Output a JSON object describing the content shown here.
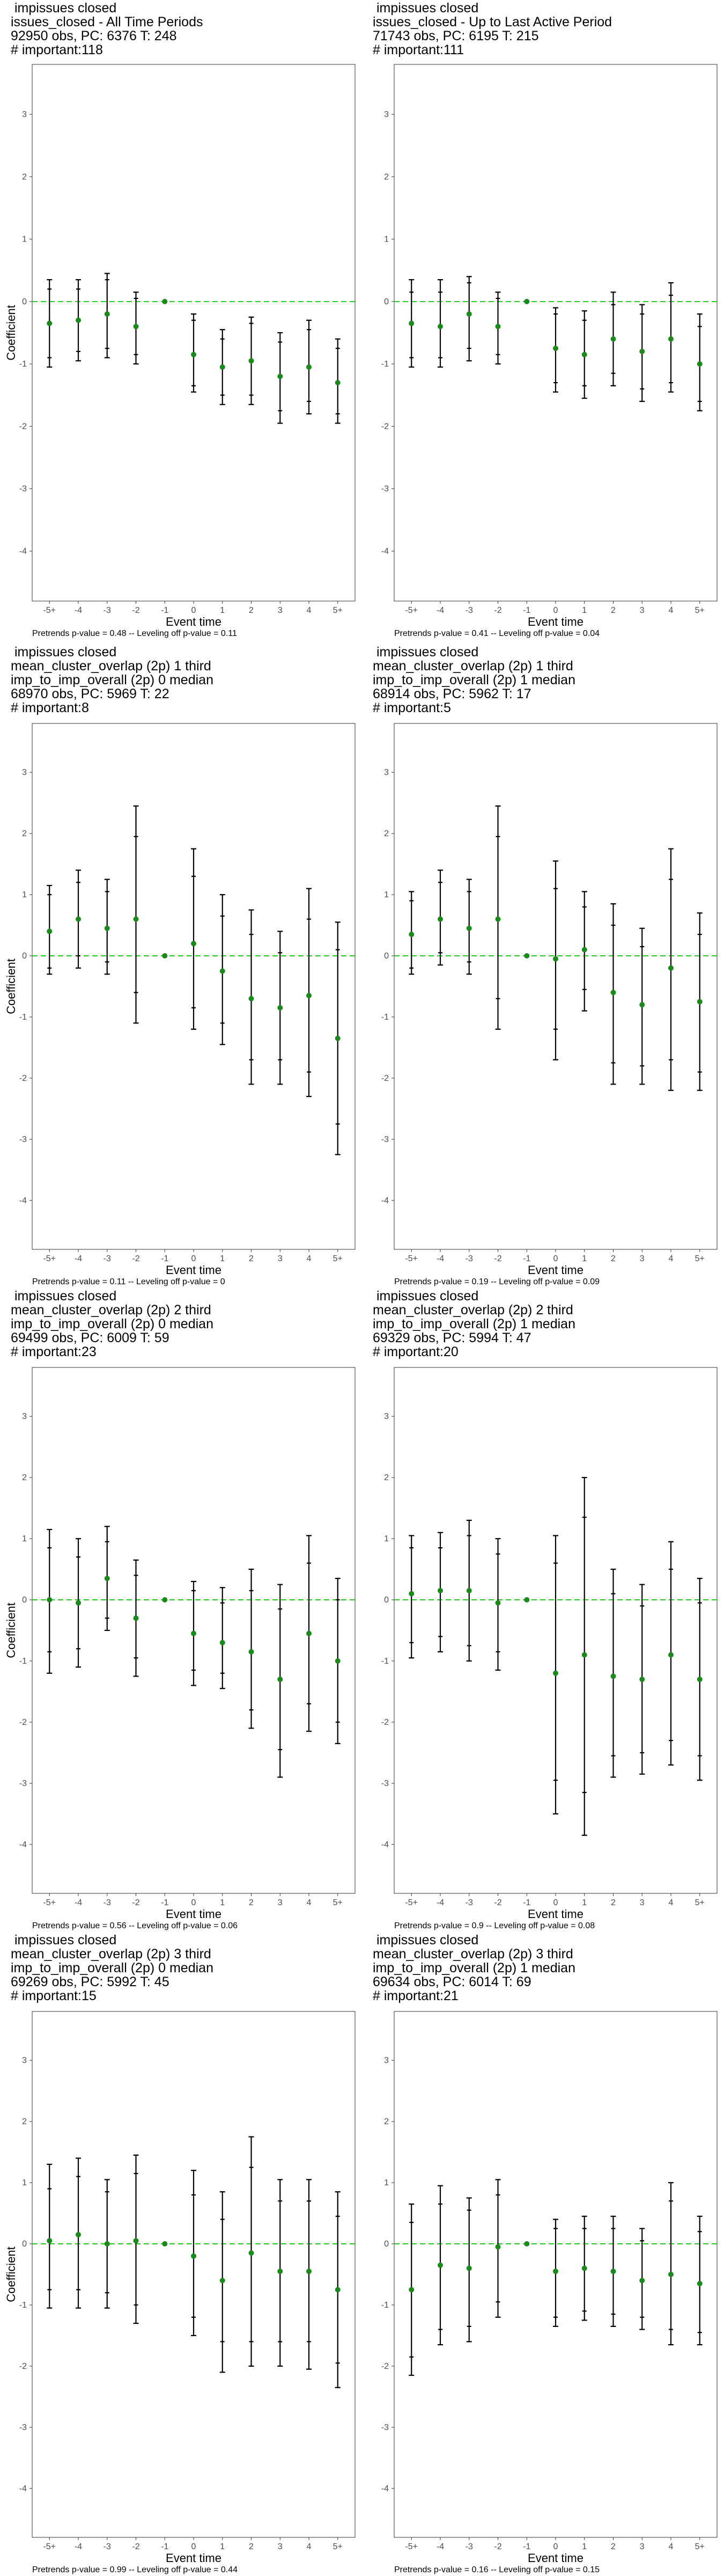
{
  "chart_data": [
    {
      "type": "scatter",
      "title_lines": [
        " impissues closed",
        "issues_closed - All Time Periods",
        "92950 obs, PC: 6376 T: 248",
        "# important:118"
      ],
      "xlabel": "Event time",
      "ylabel": "Coefficient",
      "categories": [
        "-5+",
        "-4",
        "-3",
        "-2",
        "-1",
        "0",
        "1",
        "2",
        "3",
        "4",
        "5+"
      ],
      "ylim": [
        -4.8,
        3.8
      ],
      "yticks": [
        -4,
        -3,
        -2,
        -1,
        0,
        1,
        2,
        3
      ],
      "reference_line": 0,
      "footer": "Pretrends p-value = 0.48 -- Leveling off p-value = 0.11",
      "series": [
        {
          "estimate": [
            -0.35,
            -0.3,
            -0.2,
            -0.4,
            0,
            -0.85,
            -1.05,
            -0.95,
            -1.2,
            -1.05,
            -1.3
          ],
          "ci90": [
            [
              -0.9,
              0.2
            ],
            [
              -0.8,
              0.2
            ],
            [
              -0.75,
              0.35
            ],
            [
              -0.85,
              0.05
            ],
            null,
            [
              -1.35,
              -0.3
            ],
            [
              -1.5,
              -0.6
            ],
            [
              -1.5,
              -0.35
            ],
            [
              -1.75,
              -0.65
            ],
            [
              -1.6,
              -0.45
            ],
            [
              -1.8,
              -0.75
            ]
          ],
          "ci95": [
            [
              -1.05,
              0.35
            ],
            [
              -0.95,
              0.35
            ],
            [
              -0.9,
              0.45
            ],
            [
              -1.0,
              0.15
            ],
            null,
            [
              -1.45,
              -0.2
            ],
            [
              -1.65,
              -0.45
            ],
            [
              -1.65,
              -0.25
            ],
            [
              -1.95,
              -0.5
            ],
            [
              -1.8,
              -0.3
            ],
            [
              -1.95,
              -0.6
            ]
          ]
        }
      ]
    },
    {
      "type": "scatter",
      "title_lines": [
        " impissues closed",
        "issues_closed - Up to Last Active Period",
        "71743 obs, PC: 6195 T: 215",
        "# important:111"
      ],
      "xlabel": "Event time",
      "ylabel": "",
      "categories": [
        "-5+",
        "-4",
        "-3",
        "-2",
        "-1",
        "0",
        "1",
        "2",
        "3",
        "4",
        "5+"
      ],
      "ylim": [
        -4.8,
        3.8
      ],
      "yticks": [
        -4,
        -3,
        -2,
        -1,
        0,
        1,
        2,
        3
      ],
      "reference_line": 0,
      "footer": "Pretrends p-value = 0.41 -- Leveling off p-value = 0.04",
      "series": [
        {
          "estimate": [
            -0.35,
            -0.4,
            -0.2,
            -0.4,
            0,
            -0.75,
            -0.85,
            -0.6,
            -0.8,
            -0.6,
            -1.0
          ],
          "ci90": [
            [
              -0.9,
              0.15
            ],
            [
              -0.9,
              0.15
            ],
            [
              -0.75,
              0.3
            ],
            [
              -0.85,
              0.05
            ],
            null,
            [
              -1.3,
              -0.2
            ],
            [
              -1.35,
              -0.3
            ],
            [
              -1.15,
              -0.05
            ],
            [
              -1.4,
              -0.2
            ],
            [
              -1.3,
              0.1
            ],
            [
              -1.6,
              -0.4
            ]
          ],
          "ci95": [
            [
              -1.05,
              0.35
            ],
            [
              -1.05,
              0.35
            ],
            [
              -0.95,
              0.4
            ],
            [
              -1.0,
              0.15
            ],
            null,
            [
              -1.45,
              -0.1
            ],
            [
              -1.55,
              -0.15
            ],
            [
              -1.35,
              0.15
            ],
            [
              -1.6,
              -0.05
            ],
            [
              -1.45,
              0.3
            ],
            [
              -1.75,
              -0.2
            ]
          ]
        }
      ]
    },
    {
      "type": "scatter",
      "title_lines": [
        " impissues closed",
        "mean_cluster_overlap (2p) 1 third",
        "imp_to_imp_overall (2p) 0 median",
        "68970 obs, PC: 5969 T: 22",
        "# important:8"
      ],
      "xlabel": "Event time",
      "ylabel": "Coefficient",
      "categories": [
        "-5+",
        "-4",
        "-3",
        "-2",
        "-1",
        "0",
        "1",
        "2",
        "3",
        "4",
        "5+"
      ],
      "ylim": [
        -4.8,
        3.8
      ],
      "yticks": [
        -4,
        -3,
        -2,
        -1,
        0,
        1,
        2,
        3
      ],
      "reference_line": 0,
      "footer": "Pretrends p-value = 0.11 -- Leveling off p-value = 0",
      "series": [
        {
          "estimate": [
            0.4,
            0.6,
            0.45,
            0.6,
            0,
            0.2,
            -0.25,
            -0.7,
            -0.85,
            -0.65,
            -1.35
          ],
          "ci90": [
            [
              -0.2,
              1.0
            ],
            [
              0.0,
              1.2
            ],
            [
              -0.1,
              1.05
            ],
            [
              -0.6,
              1.95
            ],
            null,
            [
              -0.85,
              1.3
            ],
            [
              -1.1,
              0.65
            ],
            [
              -1.7,
              0.35
            ],
            [
              -1.7,
              0.05
            ],
            [
              -1.9,
              0.6
            ],
            [
              -2.75,
              0.1
            ]
          ],
          "ci95": [
            [
              -0.3,
              1.15
            ],
            [
              -0.2,
              1.4
            ],
            [
              -0.3,
              1.25
            ],
            [
              -1.1,
              2.45
            ],
            null,
            [
              -1.2,
              1.75
            ],
            [
              -1.45,
              1.0
            ],
            [
              -2.1,
              0.75
            ],
            [
              -2.1,
              0.4
            ],
            [
              -2.3,
              1.1
            ],
            [
              -3.25,
              0.55
            ]
          ]
        }
      ]
    },
    {
      "type": "scatter",
      "title_lines": [
        " impissues closed",
        "mean_cluster_overlap (2p) 1 third",
        "imp_to_imp_overall (2p) 1 median",
        "68914 obs, PC: 5962 T: 17",
        "# important:5"
      ],
      "xlabel": "Event time",
      "ylabel": "",
      "categories": [
        "-5+",
        "-4",
        "-3",
        "-2",
        "-1",
        "0",
        "1",
        "2",
        "3",
        "4",
        "5+"
      ],
      "ylim": [
        -4.8,
        3.8
      ],
      "yticks": [
        -4,
        -3,
        -2,
        -1,
        0,
        1,
        2,
        3
      ],
      "reference_line": 0,
      "footer": "Pretrends p-value = 0.19 -- Leveling off p-value = 0.09",
      "series": [
        {
          "estimate": [
            0.35,
            0.6,
            0.45,
            0.6,
            0,
            -0.05,
            0.1,
            -0.6,
            -0.8,
            -0.2,
            -0.75
          ],
          "ci90": [
            [
              -0.2,
              0.9
            ],
            [
              0.05,
              1.2
            ],
            [
              -0.1,
              1.05
            ],
            [
              -0.7,
              1.95
            ],
            null,
            [
              -1.2,
              1.1
            ],
            [
              -0.55,
              0.8
            ],
            [
              -1.75,
              0.5
            ],
            [
              -1.8,
              0.15
            ],
            [
              -1.7,
              1.25
            ],
            [
              -1.9,
              0.35
            ]
          ],
          "ci95": [
            [
              -0.3,
              1.05
            ],
            [
              -0.15,
              1.4
            ],
            [
              -0.3,
              1.25
            ],
            [
              -1.2,
              2.45
            ],
            null,
            [
              -1.7,
              1.55
            ],
            [
              -0.9,
              1.05
            ],
            [
              -2.1,
              0.85
            ],
            [
              -2.1,
              0.45
            ],
            [
              -2.2,
              1.75
            ],
            [
              -2.2,
              0.7
            ]
          ]
        }
      ]
    },
    {
      "type": "scatter",
      "title_lines": [
        " impissues closed",
        "mean_cluster_overlap (2p) 2 third",
        "imp_to_imp_overall (2p) 0 median",
        "69499 obs, PC: 6009 T: 59",
        "# important:23"
      ],
      "xlabel": "Event time",
      "ylabel": "Coefficient",
      "categories": [
        "-5+",
        "-4",
        "-3",
        "-2",
        "-1",
        "0",
        "1",
        "2",
        "3",
        "4",
        "5+"
      ],
      "ylim": [
        -4.8,
        3.8
      ],
      "yticks": [
        -4,
        -3,
        -2,
        -1,
        0,
        1,
        2,
        3
      ],
      "reference_line": 0,
      "footer": "Pretrends p-value = 0.56 -- Leveling off p-value = 0.06",
      "series": [
        {
          "estimate": [
            0.0,
            -0.05,
            0.35,
            -0.3,
            0,
            -0.55,
            -0.7,
            -0.85,
            -1.3,
            -0.55,
            -1.0
          ],
          "ci90": [
            [
              -0.85,
              0.85
            ],
            [
              -0.8,
              0.7
            ],
            [
              -0.3,
              0.95
            ],
            [
              -0.95,
              0.4
            ],
            null,
            [
              -1.15,
              0.15
            ],
            [
              -1.2,
              -0.05
            ],
            [
              -1.8,
              0.15
            ],
            [
              -2.45,
              -0.15
            ],
            [
              -1.7,
              0.6
            ],
            [
              -2.0,
              0.0
            ]
          ],
          "ci95": [
            [
              -1.2,
              1.15
            ],
            [
              -1.1,
              1.0
            ],
            [
              -0.5,
              1.2
            ],
            [
              -1.25,
              0.65
            ],
            null,
            [
              -1.4,
              0.3
            ],
            [
              -1.45,
              0.2
            ],
            [
              -2.1,
              0.5
            ],
            [
              -2.9,
              0.25
            ],
            [
              -2.15,
              1.05
            ],
            [
              -2.35,
              0.35
            ]
          ]
        }
      ]
    },
    {
      "type": "scatter",
      "title_lines": [
        " impissues closed",
        "mean_cluster_overlap (2p) 2 third",
        "imp_to_imp_overall (2p) 1 median",
        "69329 obs, PC: 5994 T: 47",
        "# important:20"
      ],
      "xlabel": "Event time",
      "ylabel": "",
      "categories": [
        "-5+",
        "-4",
        "-3",
        "-2",
        "-1",
        "0",
        "1",
        "2",
        "3",
        "4",
        "5+"
      ],
      "ylim": [
        -4.8,
        3.8
      ],
      "yticks": [
        -4,
        -3,
        -2,
        -1,
        0,
        1,
        2,
        3
      ],
      "reference_line": 0,
      "footer": "Pretrends p-value = 0.9 -- Leveling off p-value = 0.08",
      "series": [
        {
          "estimate": [
            0.1,
            0.15,
            0.15,
            -0.05,
            0,
            -1.2,
            -0.9,
            -1.25,
            -1.3,
            -0.9,
            -1.3
          ],
          "ci90": [
            [
              -0.7,
              0.85
            ],
            [
              -0.6,
              0.85
            ],
            [
              -0.75,
              1.05
            ],
            [
              -0.85,
              0.75
            ],
            null,
            [
              -2.95,
              0.6
            ],
            [
              -3.15,
              1.35
            ],
            [
              -2.55,
              0.1
            ],
            [
              -2.5,
              -0.1
            ],
            [
              -2.3,
              0.5
            ],
            [
              -2.55,
              -0.05
            ]
          ],
          "ci95": [
            [
              -0.95,
              1.05
            ],
            [
              -0.85,
              1.1
            ],
            [
              -1.0,
              1.3
            ],
            [
              -1.15,
              1.0
            ],
            null,
            [
              -3.5,
              1.05
            ],
            [
              -3.85,
              2.0
            ],
            [
              -2.9,
              0.5
            ],
            [
              -2.85,
              0.25
            ],
            [
              -2.7,
              0.95
            ],
            [
              -2.95,
              0.35
            ]
          ]
        }
      ]
    },
    {
      "type": "scatter",
      "title_lines": [
        " impissues closed",
        "mean_cluster_overlap (2p) 3 third",
        "imp_to_imp_overall (2p) 0 median",
        "69269 obs, PC: 5992 T: 45",
        "# important:15"
      ],
      "xlabel": "Event time",
      "ylabel": "Coefficient",
      "categories": [
        "-5+",
        "-4",
        "-3",
        "-2",
        "-1",
        "0",
        "1",
        "2",
        "3",
        "4",
        "5+"
      ],
      "ylim": [
        -4.8,
        3.8
      ],
      "yticks": [
        -4,
        -3,
        -2,
        -1,
        0,
        1,
        2,
        3
      ],
      "reference_line": 0,
      "footer": "Pretrends p-value = 0.99 -- Leveling off p-value = 0.44",
      "series": [
        {
          "estimate": [
            0.05,
            0.15,
            0.0,
            0.05,
            0,
            -0.2,
            -0.6,
            -0.15,
            -0.45,
            -0.45,
            -0.75
          ],
          "ci90": [
            [
              -0.75,
              0.9
            ],
            [
              -0.75,
              1.1
            ],
            [
              -0.8,
              0.85
            ],
            [
              -1.0,
              1.15
            ],
            null,
            [
              -1.2,
              0.8
            ],
            [
              -1.6,
              0.4
            ],
            [
              -1.6,
              1.25
            ],
            [
              -1.6,
              0.7
            ],
            [
              -1.6,
              0.7
            ],
            [
              -1.95,
              0.45
            ]
          ],
          "ci95": [
            [
              -1.05,
              1.3
            ],
            [
              -1.05,
              1.4
            ],
            [
              -1.05,
              1.05
            ],
            [
              -1.3,
              1.45
            ],
            null,
            [
              -1.5,
              1.2
            ],
            [
              -2.1,
              0.85
            ],
            [
              -2.0,
              1.75
            ],
            [
              -2.0,
              1.05
            ],
            [
              -2.05,
              1.05
            ],
            [
              -2.35,
              0.85
            ]
          ]
        }
      ]
    },
    {
      "type": "scatter",
      "title_lines": [
        " impissues closed",
        "mean_cluster_overlap (2p) 3 third",
        "imp_to_imp_overall (2p) 1 median",
        "69634 obs, PC: 6014 T: 69",
        "# important:21"
      ],
      "xlabel": "Event time",
      "ylabel": "",
      "categories": [
        "-5+",
        "-4",
        "-3",
        "-2",
        "-1",
        "0",
        "1",
        "2",
        "3",
        "4",
        "5+"
      ],
      "ylim": [
        -4.8,
        3.8
      ],
      "yticks": [
        -4,
        -3,
        -2,
        -1,
        0,
        1,
        2,
        3
      ],
      "reference_line": 0,
      "footer": "Pretrends p-value = 0.16 -- Leveling off p-value = 0.15",
      "series": [
        {
          "estimate": [
            -0.75,
            -0.35,
            -0.4,
            -0.05,
            0,
            -0.45,
            -0.4,
            -0.45,
            -0.6,
            -0.5,
            -0.65
          ],
          "ci90": [
            [
              -1.85,
              0.35
            ],
            [
              -1.4,
              0.65
            ],
            [
              -1.35,
              0.55
            ],
            [
              -0.95,
              0.8
            ],
            null,
            [
              -1.2,
              0.25
            ],
            [
              -1.1,
              0.25
            ],
            [
              -1.15,
              0.25
            ],
            [
              -1.2,
              0.05
            ],
            [
              -1.4,
              0.7
            ],
            [
              -1.45,
              0.2
            ]
          ],
          "ci95": [
            [
              -2.15,
              0.65
            ],
            [
              -1.65,
              0.95
            ],
            [
              -1.6,
              0.75
            ],
            [
              -1.2,
              1.05
            ],
            null,
            [
              -1.35,
              0.4
            ],
            [
              -1.25,
              0.45
            ],
            [
              -1.35,
              0.45
            ],
            [
              -1.4,
              0.25
            ],
            [
              -1.65,
              1.0
            ],
            [
              -1.65,
              0.45
            ]
          ]
        }
      ]
    }
  ]
}
